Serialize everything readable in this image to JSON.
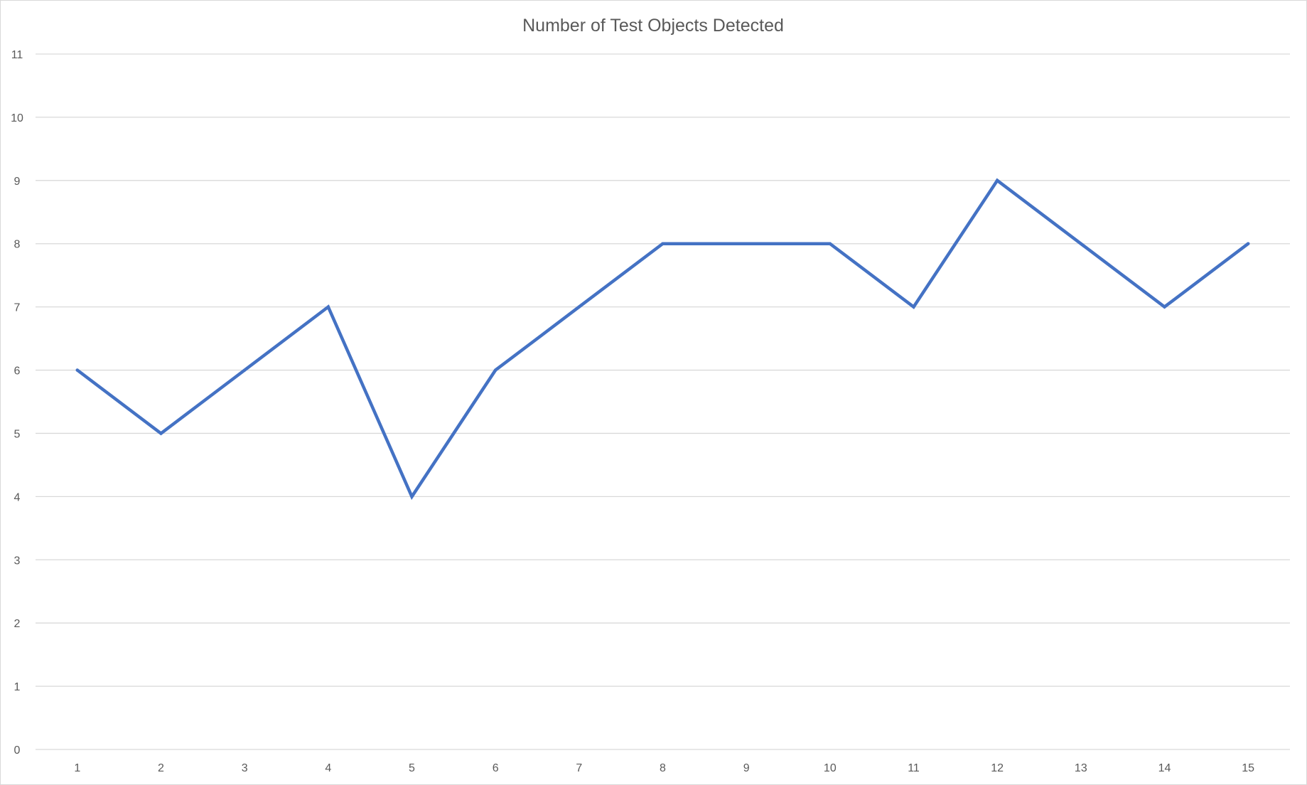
{
  "chart_data": {
    "type": "line",
    "title": "Number of Test Objects Detected",
    "xlabel": "",
    "ylabel": "",
    "categories": [
      "1",
      "2",
      "3",
      "4",
      "5",
      "6",
      "7",
      "8",
      "9",
      "10",
      "11",
      "12",
      "13",
      "14",
      "15"
    ],
    "series": [
      {
        "values": [
          6,
          5,
          6,
          7,
          4,
          6,
          7,
          8,
          8,
          8,
          7,
          9,
          8,
          7,
          8
        ],
        "color": "#4472c4"
      }
    ],
    "ylim": [
      0,
      11
    ],
    "yticks": [
      0,
      1,
      2,
      3,
      4,
      5,
      6,
      7,
      8,
      9,
      10,
      11
    ],
    "grid": true,
    "legend": "none",
    "colors": {
      "gridline": "#d9d9d9",
      "text": "#595959",
      "border": "#d9d9d9"
    }
  }
}
